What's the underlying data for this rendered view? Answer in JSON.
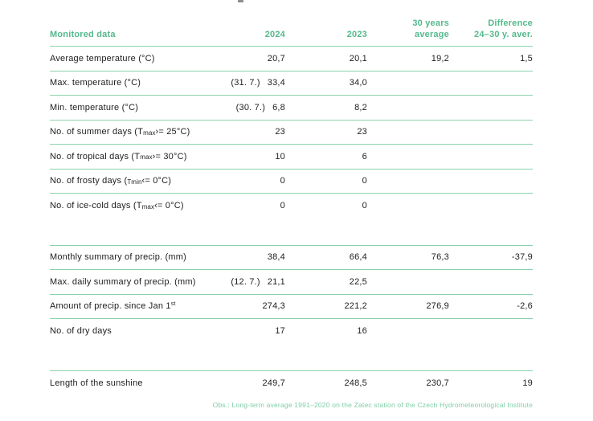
{
  "table": {
    "header": {
      "col1": "Monitored data",
      "col2": "2024",
      "col3": "2023",
      "col4_line1": "30 years",
      "col4_line2": "average",
      "col5_line1": "Difference",
      "col5_line2": "24–30 y. aver."
    },
    "sections": [
      {
        "name": "temperature",
        "rows": [
          {
            "label_pre": "Average temperature (°C)",
            "v2024": "20,7",
            "v2023": "20,1",
            "v30y": "19,2",
            "vdiff": "1,5"
          },
          {
            "label_pre": "Max. temperature (°C)",
            "date": "(31. 7.)",
            "v2024": "33,4",
            "v2023": "34,0"
          },
          {
            "label_pre": "Min. temperature (°C)",
            "date": "(30. 7.)",
            "v2024": "6,8",
            "v2023": "8,2"
          },
          {
            "label_pre": "No. of summer days (T",
            "label_small": "max",
            "label_post": " ›= 25°C)",
            "v2024": "23",
            "v2023": "23"
          },
          {
            "label_pre": "No. of tropical days (T",
            "label_small": "max",
            "label_post": " ›= 30°C)",
            "v2024": "10",
            "v2023": "6"
          },
          {
            "label_pre": "No. of frosty days (",
            "label_small": "Tmin",
            "label_post": " ‹= 0°C)",
            "v2024": "0",
            "v2023": "0"
          },
          {
            "label_pre": "No. of ice-cold days (T",
            "label_small": "max",
            "label_post": " ‹= 0°C)",
            "v2024": "0",
            "v2023": "0"
          }
        ]
      },
      {
        "name": "precipitation",
        "rows": [
          {
            "label_pre": "Monthly summary of precip. (mm)",
            "v2024": "38,4",
            "v2023": "66,4",
            "v30y": "76,3",
            "vdiff": "-37,9"
          },
          {
            "label_pre": "Max. daily summary of precip. (mm)",
            "date": "(12. 7.)",
            "v2024": "21,1",
            "v2023": "22,5"
          },
          {
            "label_pre": "Amount of precip. since Jan 1",
            "label_sup": "st",
            "v2024": "274,3",
            "v2023": "221,2",
            "v30y": "276,9",
            "vdiff": "-2,6"
          },
          {
            "label_pre": "No. of dry days",
            "v2024": "17",
            "v2023": "16"
          }
        ]
      },
      {
        "name": "sunshine",
        "rows": [
          {
            "label_pre": "Length of the sunshine",
            "v2024": "249,7",
            "v2023": "248,5",
            "v30y": "230,7",
            "vdiff": "19"
          }
        ]
      }
    ],
    "footnote": "Obs.: Long-term average 1991–2020 on the Zatec station of the Czech Hydrometeorological Institute"
  },
  "colors": {
    "accent_green": "#54b98b",
    "line_green": "#8bd2ae",
    "footnote_green": "#7ecfa7",
    "text_dark": "#1e1e1e"
  }
}
